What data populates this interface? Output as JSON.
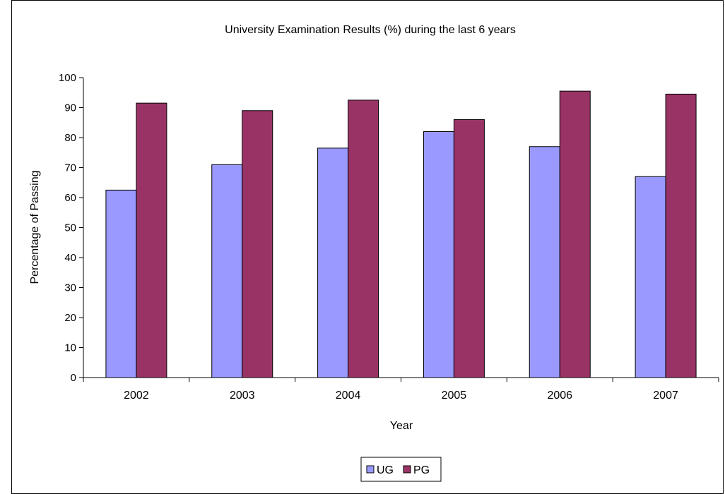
{
  "chart_data": {
    "type": "bar",
    "title": "University Examination Results (%) during the last 6 years",
    "xlabel": "Year",
    "ylabel": "Percentage of Passing",
    "categories": [
      "2002",
      "2003",
      "2004",
      "2005",
      "2006",
      "2007"
    ],
    "series": [
      {
        "name": "UG",
        "values": [
          62.5,
          71,
          76.5,
          82,
          77,
          67
        ],
        "color": "#9999ff"
      },
      {
        "name": "PG",
        "values": [
          91.5,
          89,
          92.5,
          86,
          95.5,
          94.5
        ],
        "color": "#993366"
      }
    ],
    "ylim": [
      0,
      100
    ],
    "yticks": [
      0,
      10,
      20,
      30,
      40,
      50,
      60,
      70,
      80,
      90,
      100
    ],
    "grid": false,
    "legend": "bottom-center"
  }
}
